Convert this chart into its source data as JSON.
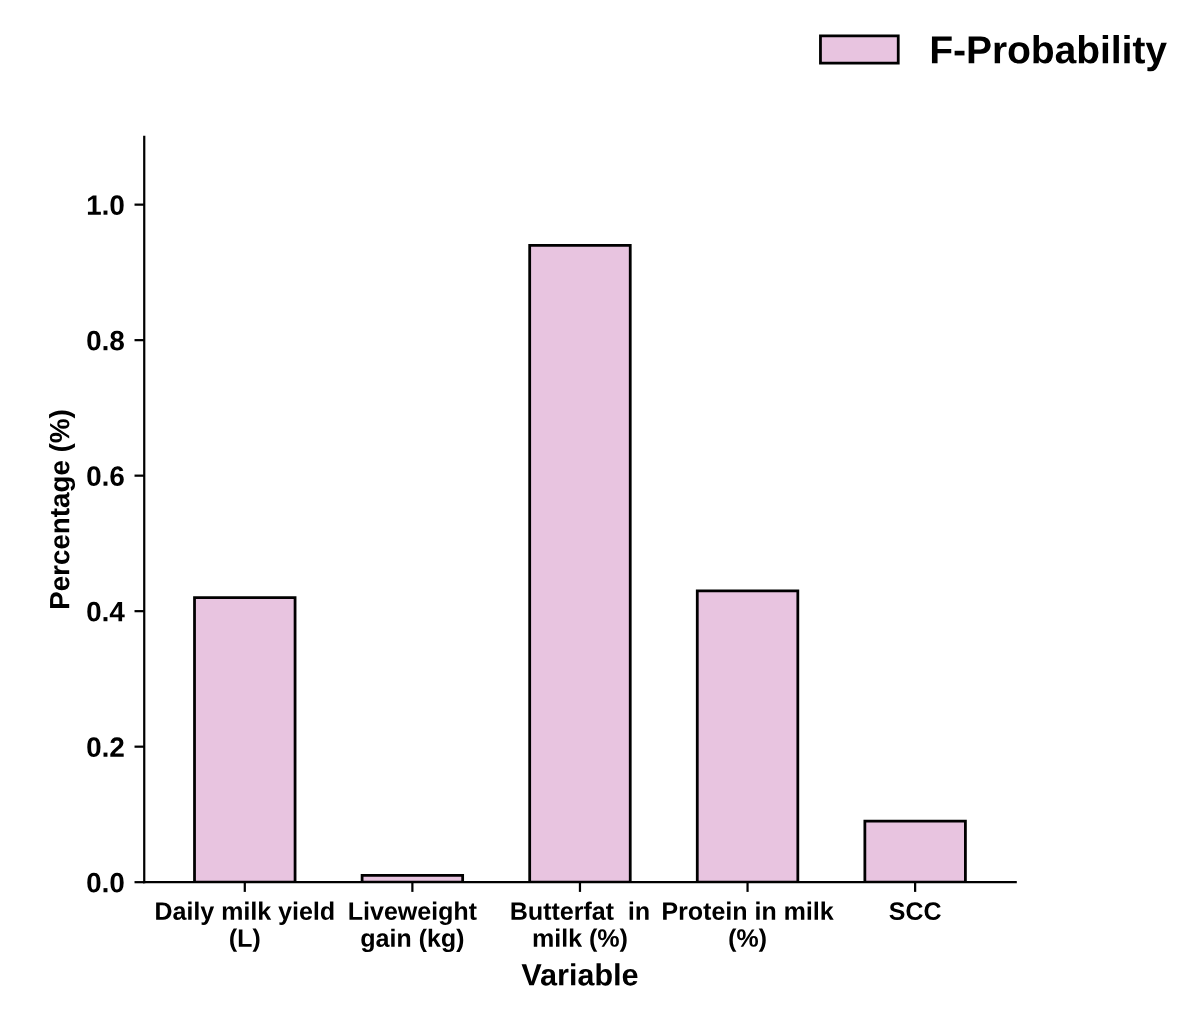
{
  "chart_data": {
    "type": "bar",
    "xlabel": "Variable",
    "ylabel": "Percentage (%)",
    "categories": [
      "Daily milk yield\n(L)",
      "Liveweight\ngain (kg)",
      "Butterfat  in\nmilk (%)",
      "Protein in milk\n(%)",
      "SCC"
    ],
    "series": [
      {
        "name": "F-Probability",
        "color": "#e8c4e0",
        "values": [
          0.42,
          0.01,
          0.94,
          0.43,
          0.09
        ]
      }
    ],
    "ylim": [
      0,
      1.1
    ],
    "yticks": [
      {
        "value": 0,
        "label": "0.0"
      },
      0.2,
      0.4,
      0.6,
      0.8,
      {
        "value": 1,
        "label": "1.0"
      }
    ],
    "legend": "top right",
    "grid": false
  }
}
